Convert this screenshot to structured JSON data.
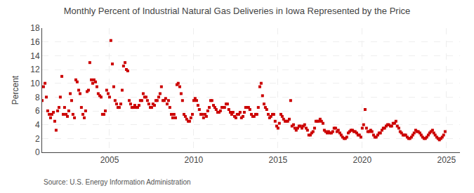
{
  "chart_data": {
    "type": "scatter",
    "title": "Monthly Percent of Industrial Natural Gas Deliveries in Iowa Represented by the Price",
    "y_label": "Percent",
    "annotations": [
      "Source: U.S. Energy Information Administration"
    ],
    "color": "#cc0000",
    "marker": "square",
    "grid": true,
    "xlim": [
      2001.0,
      2025.8
    ],
    "ylim": [
      0,
      18
    ],
    "xticks": [
      2005,
      2010,
      2015,
      2020,
      2025
    ],
    "yticks": [
      0,
      2,
      4,
      6,
      8,
      10,
      12,
      14,
      16,
      18
    ],
    "x": [
      2001.0,
      2001.08,
      2001.17,
      2001.25,
      2001.33,
      2001.42,
      2001.5,
      2001.58,
      2001.67,
      2001.75,
      2001.83,
      2001.92,
      2002.0,
      2002.08,
      2002.17,
      2002.25,
      2002.33,
      2002.42,
      2002.5,
      2002.58,
      2002.67,
      2002.75,
      2002.83,
      2002.92,
      2003.0,
      2003.08,
      2003.17,
      2003.25,
      2003.33,
      2003.42,
      2003.5,
      2003.58,
      2003.67,
      2003.75,
      2003.83,
      2003.92,
      2004.0,
      2004.08,
      2004.17,
      2004.25,
      2004.33,
      2004.42,
      2004.5,
      2004.58,
      2004.67,
      2004.75,
      2004.83,
      2004.92,
      2005.0,
      2005.08,
      2005.17,
      2005.25,
      2005.33,
      2005.42,
      2005.5,
      2005.58,
      2005.67,
      2005.75,
      2005.83,
      2005.92,
      2006.0,
      2006.08,
      2006.17,
      2006.25,
      2006.33,
      2006.42,
      2006.5,
      2006.58,
      2006.67,
      2006.75,
      2006.83,
      2006.92,
      2007.0,
      2007.08,
      2007.17,
      2007.25,
      2007.33,
      2007.42,
      2007.5,
      2007.58,
      2007.67,
      2007.75,
      2007.83,
      2007.92,
      2008.0,
      2008.08,
      2008.17,
      2008.25,
      2008.33,
      2008.42,
      2008.5,
      2008.58,
      2008.67,
      2008.75,
      2008.83,
      2008.92,
      2009.0,
      2009.08,
      2009.17,
      2009.25,
      2009.33,
      2009.42,
      2009.5,
      2009.58,
      2009.67,
      2009.75,
      2009.83,
      2009.92,
      2010.0,
      2010.08,
      2010.17,
      2010.25,
      2010.33,
      2010.42,
      2010.5,
      2010.58,
      2010.67,
      2010.75,
      2010.83,
      2010.92,
      2011.0,
      2011.08,
      2011.17,
      2011.25,
      2011.33,
      2011.42,
      2011.5,
      2011.58,
      2011.67,
      2011.75,
      2011.83,
      2011.92,
      2012.0,
      2012.08,
      2012.17,
      2012.25,
      2012.33,
      2012.42,
      2012.5,
      2012.58,
      2012.67,
      2012.75,
      2012.83,
      2012.92,
      2013.0,
      2013.08,
      2013.17,
      2013.25,
      2013.33,
      2013.42,
      2013.5,
      2013.58,
      2013.67,
      2013.75,
      2013.83,
      2013.92,
      2014.0,
      2014.08,
      2014.17,
      2014.25,
      2014.33,
      2014.42,
      2014.5,
      2014.58,
      2014.67,
      2014.75,
      2014.83,
      2014.92,
      2015.0,
      2015.08,
      2015.17,
      2015.25,
      2015.33,
      2015.42,
      2015.5,
      2015.58,
      2015.67,
      2015.75,
      2015.83,
      2015.92,
      2016.0,
      2016.08,
      2016.17,
      2016.25,
      2016.33,
      2016.42,
      2016.5,
      2016.58,
      2016.67,
      2016.75,
      2016.83,
      2016.92,
      2017.0,
      2017.08,
      2017.17,
      2017.25,
      2017.33,
      2017.42,
      2017.5,
      2017.58,
      2017.67,
      2017.75,
      2017.83,
      2017.92,
      2018.0,
      2018.08,
      2018.17,
      2018.25,
      2018.33,
      2018.42,
      2018.5,
      2018.58,
      2018.67,
      2018.75,
      2018.83,
      2018.92,
      2019.0,
      2019.08,
      2019.17,
      2019.25,
      2019.33,
      2019.42,
      2019.5,
      2019.58,
      2019.67,
      2019.75,
      2019.83,
      2019.92,
      2020.0,
      2020.08,
      2020.17,
      2020.25,
      2020.33,
      2020.42,
      2020.5,
      2020.58,
      2020.67,
      2020.75,
      2020.83,
      2020.92,
      2021.0,
      2021.08,
      2021.17,
      2021.25,
      2021.33,
      2021.42,
      2021.5,
      2021.58,
      2021.67,
      2021.75,
      2021.83,
      2021.92,
      2022.0,
      2022.08,
      2022.17,
      2022.25,
      2022.33,
      2022.42,
      2022.5,
      2022.58,
      2022.67,
      2022.75,
      2022.83,
      2022.92,
      2023.0,
      2023.08,
      2023.17,
      2023.25,
      2023.33,
      2023.42,
      2023.5,
      2023.58,
      2023.67,
      2023.75,
      2023.83,
      2023.92,
      2024.0,
      2024.08,
      2024.17,
      2024.25,
      2024.33,
      2024.42,
      2024.5,
      2024.58,
      2024.67,
      2024.75,
      2024.83,
      2024.92
    ],
    "values": [
      7.5,
      9.5,
      10.0,
      8.0,
      6.0,
      5.5,
      5.0,
      5.5,
      5.8,
      4.5,
      3.2,
      6.0,
      6.5,
      8.0,
      11.0,
      5.5,
      6.5,
      5.5,
      5.2,
      6.0,
      8.5,
      7.5,
      5.5,
      5.0,
      10.5,
      10.2,
      9.0,
      8.5,
      6.5,
      5.5,
      5.0,
      6.0,
      8.8,
      9.0,
      13.0,
      10.5,
      10.0,
      10.5,
      10.2,
      9.5,
      8.5,
      8.2,
      8.0,
      5.5,
      5.5,
      6.0,
      9.0,
      8.5,
      8.0,
      16.2,
      12.8,
      9.5,
      7.5,
      7.0,
      6.5,
      6.5,
      7.0,
      9.0,
      12.5,
      13.0,
      12.0,
      11.8,
      7.5,
      7.0,
      6.5,
      6.5,
      6.8,
      6.5,
      6.5,
      6.8,
      7.5,
      7.5,
      8.5,
      8.0,
      8.0,
      7.5,
      7.0,
      6.5,
      6.5,
      7.0,
      6.8,
      7.5,
      7.5,
      8.0,
      8.5,
      9.5,
      7.5,
      7.5,
      7.8,
      7.0,
      7.5,
      6.5,
      5.5,
      5.0,
      5.5,
      5.0,
      9.8,
      10.0,
      9.5,
      8.5,
      7.5,
      5.5,
      5.2,
      4.8,
      4.5,
      4.5,
      5.0,
      5.5,
      7.5,
      7.8,
      7.5,
      6.8,
      6.2,
      5.5,
      5.5,
      5.0,
      5.5,
      5.2,
      6.0,
      6.5,
      7.5,
      7.5,
      6.8,
      6.5,
      6.2,
      5.8,
      5.8,
      6.0,
      6.5,
      6.5,
      6.5,
      7.0,
      7.0,
      6.2,
      5.8,
      5.5,
      5.8,
      5.2,
      5.0,
      5.5,
      5.5,
      5.8,
      5.0,
      5.2,
      5.8,
      6.5,
      6.5,
      6.5,
      6.2,
      5.5,
      5.2,
      5.2,
      5.5,
      5.5,
      6.5,
      9.5,
      10.0,
      8.2,
      7.0,
      6.5,
      6.2,
      5.5,
      5.0,
      5.2,
      5.5,
      5.5,
      4.5,
      3.8,
      3.5,
      4.2,
      5.5,
      5.2,
      4.8,
      4.5,
      4.5,
      4.5,
      4.8,
      7.5,
      3.8,
      4.0,
      3.5,
      3.2,
      3.5,
      3.8,
      3.8,
      3.5,
      3.8,
      4.0,
      3.5,
      3.2,
      2.5,
      2.5,
      2.8,
      3.0,
      3.5,
      4.5,
      4.5,
      4.5,
      4.8,
      4.5,
      4.2,
      3.2,
      3.0,
      2.8,
      3.0,
      2.8,
      2.8,
      3.0,
      3.5,
      3.5,
      3.0,
      3.2,
      2.8,
      2.5,
      2.2,
      2.0,
      2.0,
      2.2,
      2.8,
      3.0,
      3.2,
      3.2,
      3.0,
      3.0,
      2.8,
      2.5,
      2.5,
      2.2,
      3.5,
      4.0,
      6.2,
      3.5,
      3.0,
      3.0,
      3.2,
      3.0,
      2.5,
      2.2,
      2.2,
      2.5,
      2.8,
      2.8,
      3.2,
      3.5,
      3.5,
      3.8,
      4.0,
      4.0,
      3.8,
      3.8,
      4.2,
      4.2,
      4.5,
      3.8,
      3.5,
      3.0,
      2.8,
      2.5,
      2.5,
      2.5,
      2.2,
      2.0,
      2.0,
      2.2,
      2.5,
      2.8,
      3.2,
      3.0,
      3.0,
      2.8,
      2.5,
      2.2,
      2.0,
      2.0,
      2.2,
      2.5,
      2.8,
      3.0,
      3.2,
      2.8,
      2.5,
      2.2,
      2.0,
      1.8,
      2.0,
      2.2,
      2.5,
      3.0
    ]
  }
}
